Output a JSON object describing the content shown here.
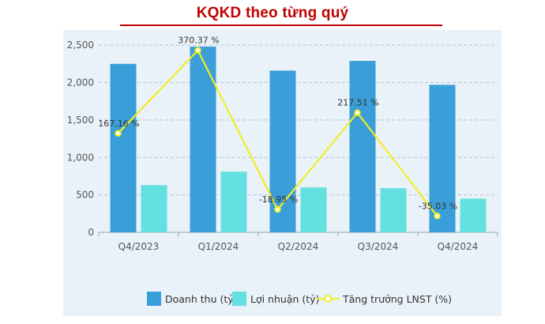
{
  "title": "KQKD theo từng quý",
  "colors": {
    "title": "#c00000",
    "revenue": "#3a9fd8",
    "profit": "#63e0e0",
    "growth": "#f4ec22",
    "panel": "#e9f2f9"
  },
  "chart_data": {
    "type": "bar",
    "categories": [
      "Q4/2023",
      "Q1/2024",
      "Q2/2024",
      "Q3/2024",
      "Q4/2024"
    ],
    "series": [
      {
        "name": "Doanh thu (tỷ)",
        "type": "bar",
        "axis": "left",
        "values": [
          2250,
          2480,
          2160,
          2290,
          1970
        ]
      },
      {
        "name": "Lợi nhuận (tỷ)",
        "type": "bar",
        "axis": "left",
        "values": [
          630,
          810,
          600,
          590,
          450
        ]
      },
      {
        "name": "Tăng trưởng LNST (%)",
        "type": "line",
        "axis": "right",
        "values": [
          167.16,
          370.37,
          -18.95,
          217.51,
          -35.03
        ],
        "labels": [
          "167.16 %",
          "370.37 %",
          "-18.95 %",
          "217.51 %",
          "-35.03 %"
        ]
      }
    ],
    "yticks": [
      "0",
      "500",
      "1,000",
      "1,500",
      "2,000",
      "2,500"
    ],
    "ylim": [
      0,
      2600
    ],
    "y2lim": [
      -75,
      420
    ],
    "grid": true,
    "legend_position": "bottom"
  }
}
